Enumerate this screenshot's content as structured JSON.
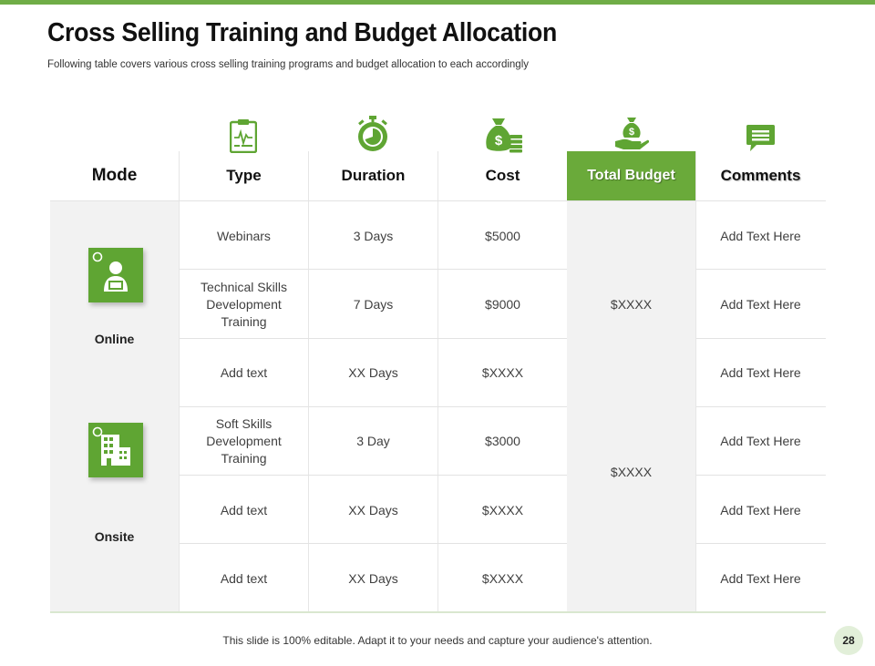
{
  "title": "Cross Selling Training and Budget Allocation",
  "subtitle": "Following table covers various cross selling training programs and budget allocation to each accordingly",
  "headers": {
    "mode": "Mode",
    "type": "Type",
    "duration": "Duration",
    "cost": "Cost",
    "total_budget": "Total Budget",
    "comments": "Comments"
  },
  "header_icons": [
    "clipboard-chart-icon",
    "stopwatch-icon",
    "money-bag-icon",
    "hand-money-bag-icon",
    "chat-bubble-icon"
  ],
  "modes": [
    {
      "label": "Online",
      "icon": "online-user-icon",
      "budget": "$XXXX"
    },
    {
      "label": "Onsite",
      "icon": "office-building-icon",
      "budget": "$XXXX"
    }
  ],
  "rows": [
    {
      "type": "Webinars",
      "duration": "3 Days",
      "cost": "$5000",
      "comment": "Add Text Here"
    },
    {
      "type": "Technical Skills Development Training",
      "duration": "7 Days",
      "cost": "$9000",
      "comment": "Add Text Here"
    },
    {
      "type": "Add text",
      "duration": "XX Days",
      "cost": "$XXXX",
      "comment": "Add Text Here"
    },
    {
      "type": "Soft Skills Development Training",
      "duration": "3 Day",
      "cost": "$3000",
      "comment": "Add Text Here"
    },
    {
      "type": "Add text",
      "duration": "XX Days",
      "cost": "$XXXX",
      "comment": "Add Text Here"
    },
    {
      "type": "Add text",
      "duration": "XX Days",
      "cost": "$XXXX",
      "comment": "Add Text Here"
    }
  ],
  "footer": "This slide is 100% editable. Adapt it to your needs and capture your audience's attention.",
  "page_number": "28",
  "colors": {
    "accent": "#70ad47",
    "header_fill": "#6aaa3a",
    "icon_green": "#5fa533",
    "shade": "#f2f2f2"
  }
}
